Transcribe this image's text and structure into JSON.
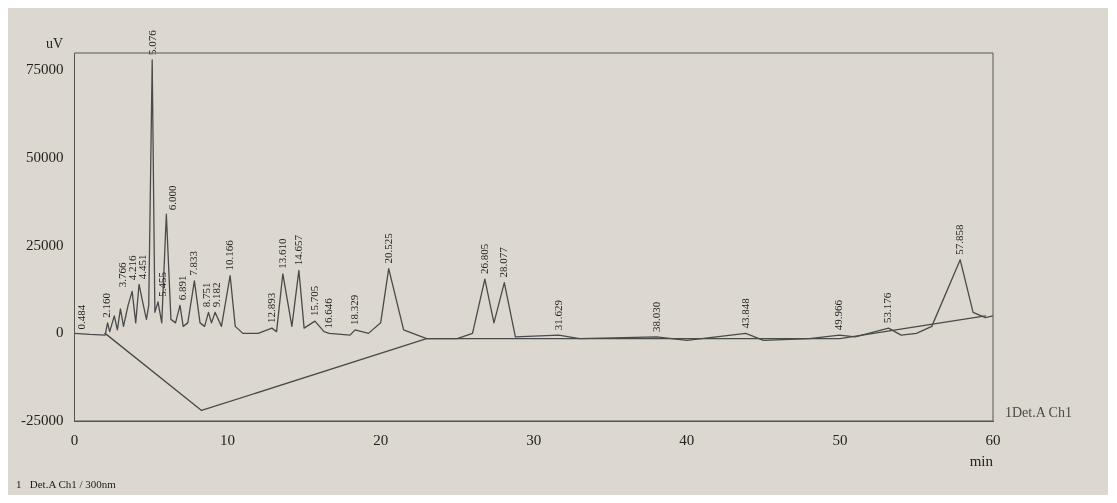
{
  "chart_data": {
    "type": "line",
    "ylabel": "uV",
    "xlabel": "min",
    "xlim": [
      0,
      60
    ],
    "xticks": [
      0,
      10,
      20,
      30,
      40,
      50,
      60
    ],
    "ylim": [
      -25000,
      80000
    ],
    "yticks": [
      -25000,
      0,
      25000,
      50000,
      75000
    ],
    "grid": false,
    "legend": false,
    "marker": "none",
    "line_style": "solid",
    "series": [
      {
        "name": "1Det.A Ch1",
        "color": "#4a4a4a",
        "x": [
          0,
          1,
          2,
          2.16,
          2.3,
          2.6,
          2.8,
          3.0,
          3.2,
          3.5,
          3.766,
          4.0,
          4.216,
          4.451,
          4.7,
          4.85,
          5.076,
          5.25,
          5.455,
          5.7,
          6.0,
          6.3,
          6.6,
          6.891,
          7.1,
          7.4,
          7.833,
          8.2,
          8.5,
          8.751,
          8.95,
          9.182,
          9.6,
          10.166,
          10.5,
          11,
          12,
          12.893,
          13.2,
          13.61,
          14.2,
          14.657,
          15.0,
          15.705,
          16.3,
          16.646,
          18.0,
          18.329,
          19.2,
          20.0,
          20.525,
          21.5,
          23,
          25,
          26.0,
          26.805,
          27.4,
          28.077,
          28.8,
          31.629,
          33,
          38.03,
          40,
          43.848,
          45,
          48,
          49.966,
          51,
          53.176,
          54,
          55,
          56,
          57.858,
          58.7,
          59.5,
          60
        ],
        "values": [
          0,
          -300,
          -500,
          3000,
          500,
          5000,
          1000,
          7000,
          2000,
          8000,
          12000,
          3000,
          14000,
          9000,
          4000,
          8000,
          78000,
          6000,
          9000,
          3000,
          34000,
          4000,
          3000,
          8000,
          2000,
          3000,
          15000,
          3000,
          2000,
          6000,
          3000,
          6000,
          2000,
          16500,
          2000,
          0,
          0,
          1500,
          500,
          17000,
          2000,
          18000,
          1500,
          3500,
          500,
          0,
          -500,
          1000,
          0,
          3000,
          18500,
          1000,
          -1500,
          -1500,
          0,
          15500,
          3000,
          14500,
          -1000,
          -500,
          -1500,
          -1000,
          -2000,
          0,
          -2000,
          -1500,
          -500,
          -1000,
          1500,
          -500,
          0,
          2000,
          21000,
          6000,
          4500,
          5000
        ]
      },
      {
        "color": "#4a4a4a",
        "x": [
          2,
          8.3,
          23,
          50,
          59.5
        ],
        "values": [
          0,
          -22000,
          -1500,
          -1500,
          5000
        ]
      }
    ],
    "annotations": [
      {
        "text": "0.484",
        "x": 0.484,
        "y": 0
      },
      {
        "text": "2.160",
        "x": 2.16,
        "y": 3000
      },
      {
        "text": "3.766",
        "x": 3.766,
        "y": 12000
      },
      {
        "text": "4.216",
        "x": 4.216,
        "y": 14000
      },
      {
        "text": "4.451",
        "x": 4.451,
        "y": 9000
      },
      {
        "text": "5.076",
        "x": 5.076,
        "y": 78000
      },
      {
        "text": "5.455",
        "x": 5.455,
        "y": 9000
      },
      {
        "text": "6.000",
        "x": 6.0,
        "y": 34000
      },
      {
        "text": "6.891",
        "x": 6.891,
        "y": 8000
      },
      {
        "text": "7.833",
        "x": 7.833,
        "y": 15000
      },
      {
        "text": "8.751",
        "x": 8.751,
        "y": 6000
      },
      {
        "text": "9.182",
        "x": 9.182,
        "y": 6000
      },
      {
        "text": "10.166",
        "x": 10.166,
        "y": 16500
      },
      {
        "text": "12.893",
        "x": 12.893,
        "y": 1500
      },
      {
        "text": "13.610",
        "x": 13.61,
        "y": 17000
      },
      {
        "text": "14.657",
        "x": 14.657,
        "y": 18000
      },
      {
        "text": "15.705",
        "x": 15.705,
        "y": 3500
      },
      {
        "text": "16.646",
        "x": 16.646,
        "y": 0
      },
      {
        "text": "18.329",
        "x": 18.329,
        "y": 1000
      },
      {
        "text": "20.525",
        "x": 20.525,
        "y": 18500
      },
      {
        "text": "26.805",
        "x": 26.805,
        "y": 15500
      },
      {
        "text": "28.077",
        "x": 28.077,
        "y": 14500
      },
      {
        "text": "31.629",
        "x": 31.629,
        "y": -500
      },
      {
        "text": "38.030",
        "x": 38.03,
        "y": -1000
      },
      {
        "text": "43.848",
        "x": 43.848,
        "y": 0
      },
      {
        "text": "49.966",
        "x": 49.966,
        "y": -500
      },
      {
        "text": "53.176",
        "x": 53.176,
        "y": 1500
      },
      {
        "text": "57.858",
        "x": 57.858,
        "y": 21000
      },
      "1   Det.A Ch1 / 300nm"
    ]
  }
}
